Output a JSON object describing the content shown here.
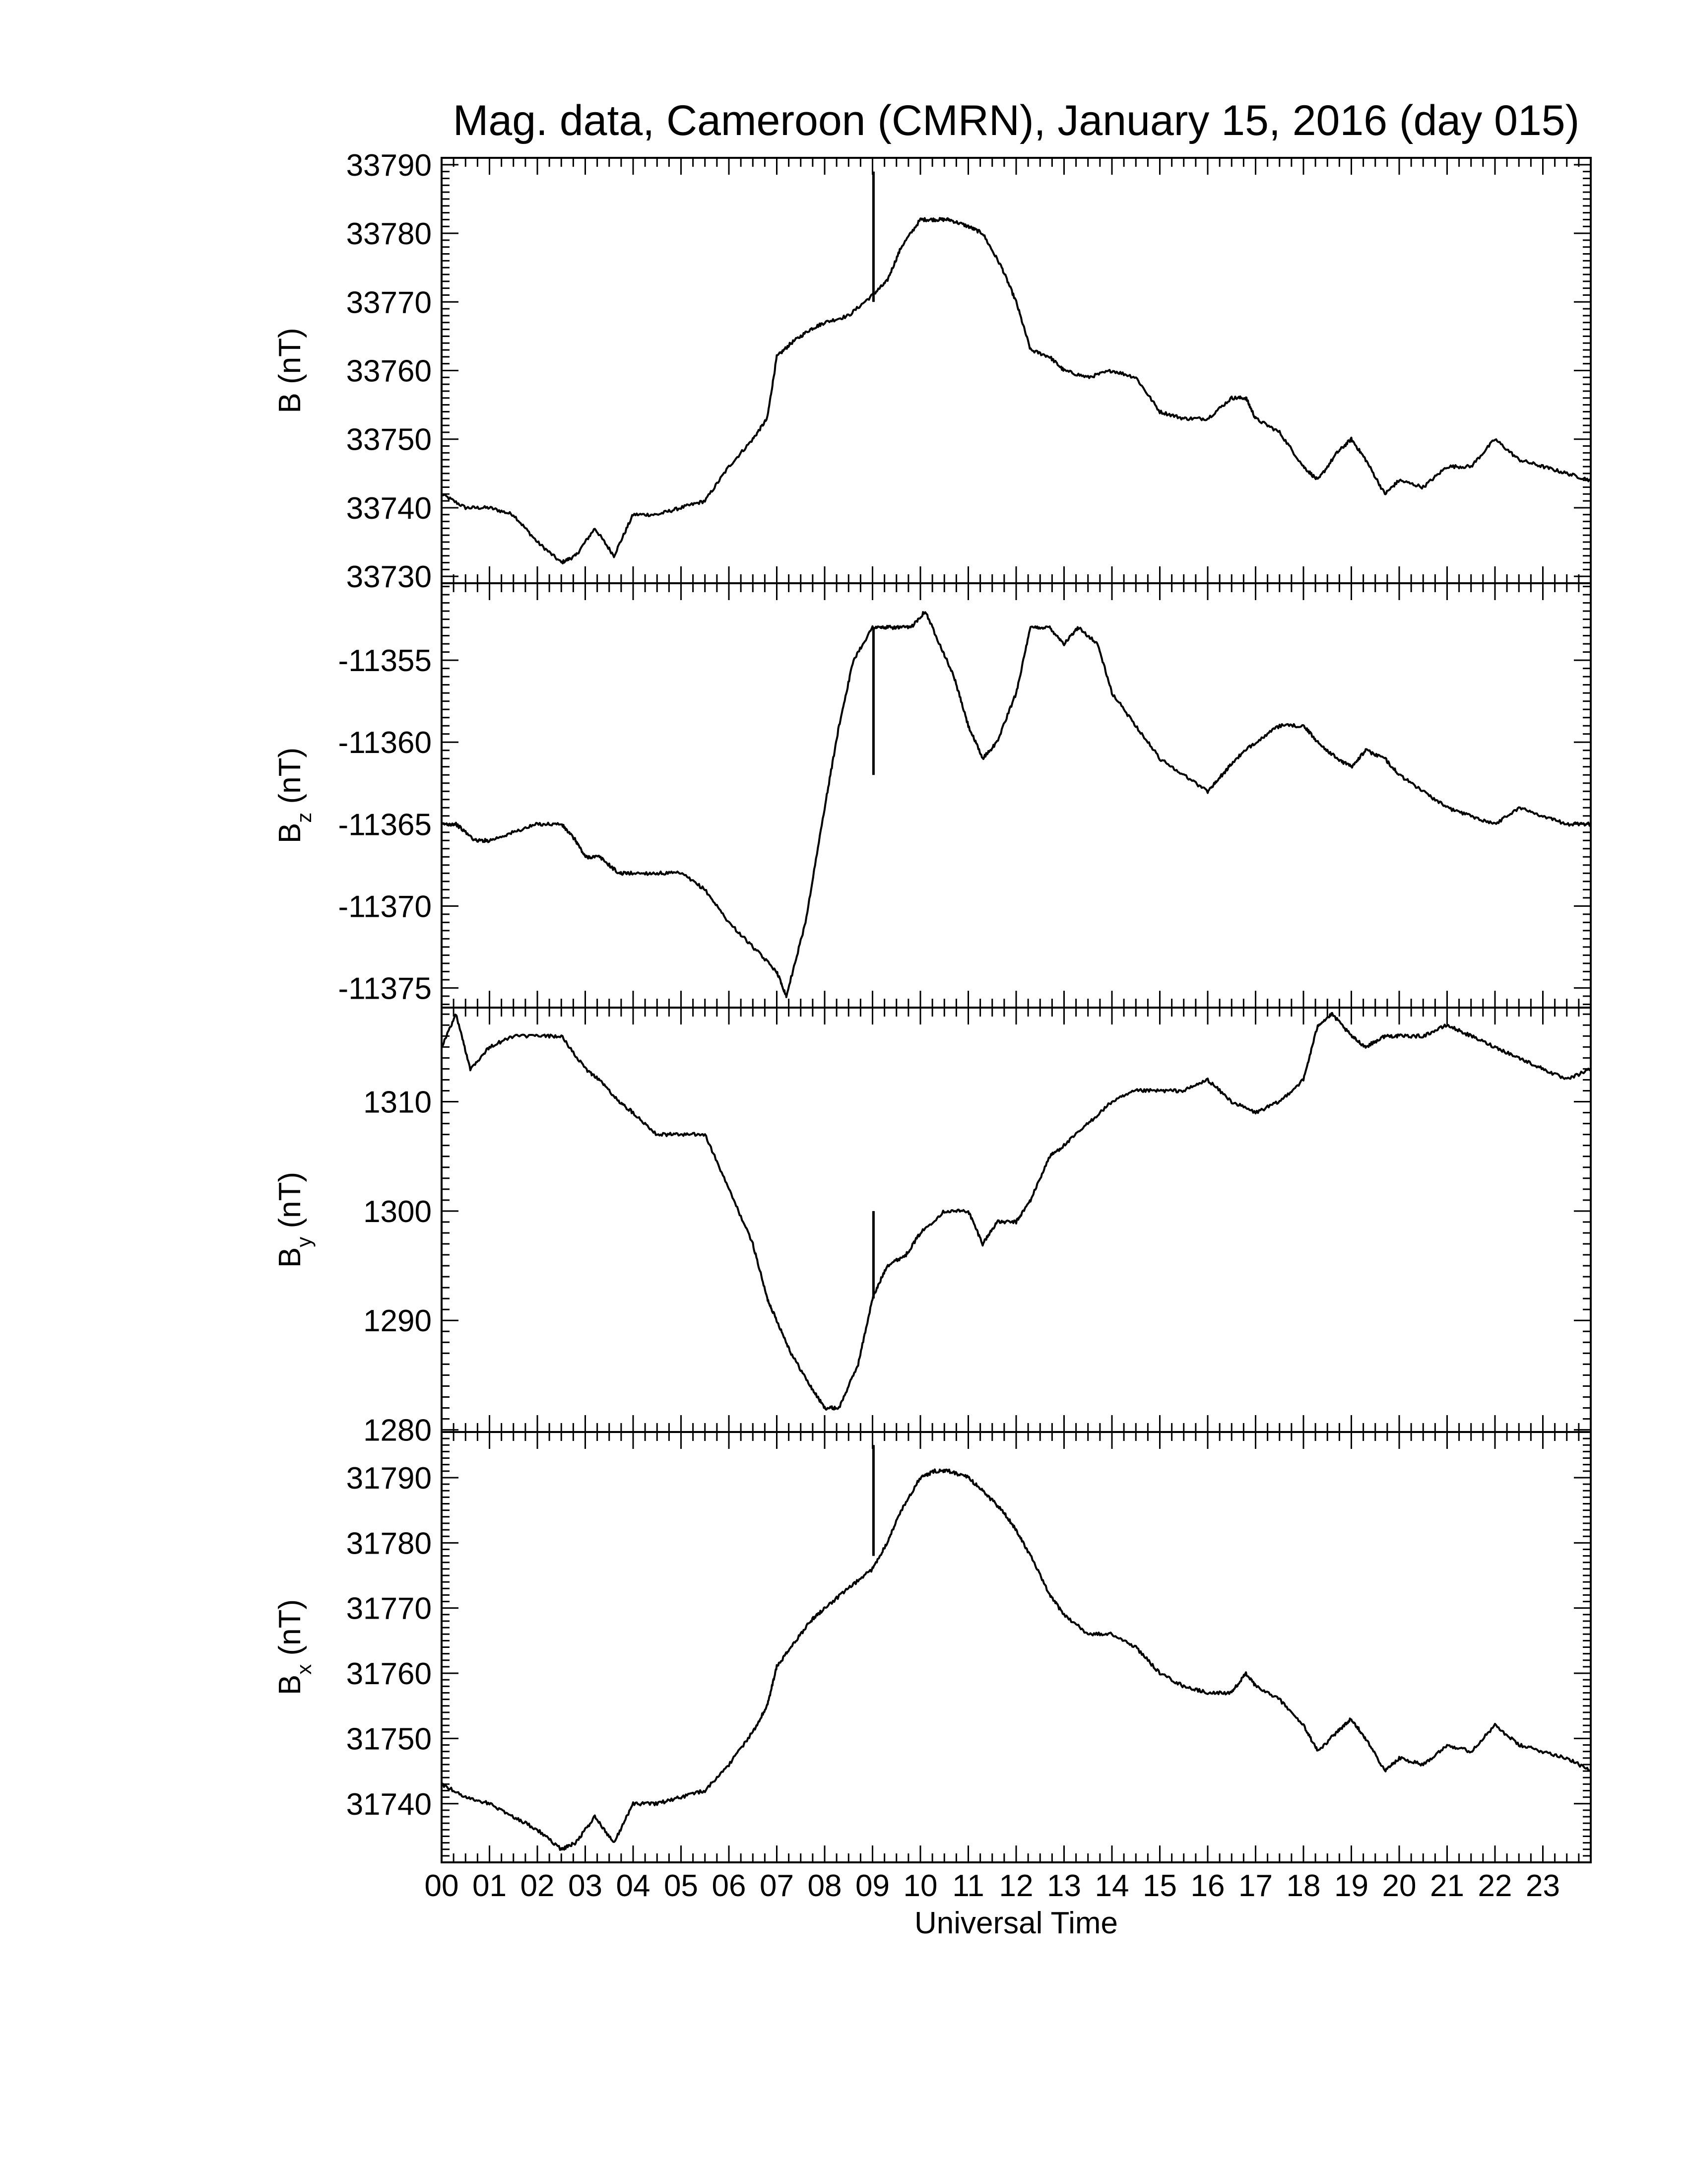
{
  "title": "Mag. data, Cameroon (CMRN), January 15, 2016 (day 015)",
  "xlabel": "Universal Time",
  "x_tick_labels": [
    "00",
    "01",
    "02",
    "03",
    "04",
    "05",
    "06",
    "07",
    "08",
    "09",
    "10",
    "11",
    "12",
    "13",
    "14",
    "15",
    "16",
    "17",
    "18",
    "19",
    "20",
    "21",
    "22",
    "23"
  ],
  "line_color": "#000000",
  "chart_data": [
    {
      "type": "line",
      "ylabel_main": "B",
      "ylabel_sub": "",
      "ylabel_unit": "(nT)",
      "ylim": [
        33729,
        33791
      ],
      "yticks": [
        33730,
        33740,
        33750,
        33760,
        33770,
        33780,
        33790
      ],
      "xlim": [
        0,
        24
      ],
      "x": [
        0,
        0.5,
        1.0,
        1.5,
        2.0,
        2.5,
        2.8,
        3.2,
        3.6,
        4.0,
        4.5,
        5.0,
        5.5,
        6.0,
        6.5,
        6.8,
        7.0,
        7.3,
        7.7,
        8.0,
        8.5,
        9.0,
        9.3,
        9.6,
        10.0,
        10.3,
        10.6,
        11.0,
        11.3,
        11.7,
        12.0,
        12.3,
        12.7,
        13.0,
        13.5,
        14.0,
        14.5,
        15.0,
        15.5,
        16.0,
        16.5,
        16.8,
        17.0,
        17.5,
        18.0,
        18.3,
        18.7,
        19.0,
        19.3,
        19.7,
        20.0,
        20.5,
        21.0,
        21.5,
        22.0,
        22.5,
        23.0,
        23.5,
        24.0
      ],
      "y": [
        33742,
        33740,
        33740,
        33739,
        33735,
        33732,
        33733,
        33737,
        33733,
        33739,
        33739,
        33740,
        33741,
        33746,
        33750,
        33753,
        33762,
        33764,
        33766,
        33767,
        33768,
        33771,
        33773,
        33778,
        33782,
        33782,
        33782,
        33781,
        33780,
        33775,
        33770,
        33763,
        33762,
        33760,
        33759,
        33760,
        33759,
        33754,
        33753,
        33753,
        33756,
        33756,
        33753,
        33751,
        33746,
        33744,
        33748,
        33750,
        33747,
        33742,
        33744,
        33743,
        33746,
        33746,
        33750,
        33747,
        33746,
        33745,
        33744
      ],
      "spike": {
        "x": 9.02,
        "ymin": 33770,
        "ymax": 33789
      }
    },
    {
      "type": "line",
      "ylabel_main": "B",
      "ylabel_sub": "z",
      "ylabel_unit": "(nT)",
      "ylim": [
        -11376.2,
        -11350.3
      ],
      "yticks": [
        -11355,
        -11360,
        -11365,
        -11370,
        -11375
      ],
      "xlim": [
        0,
        24
      ],
      "x": [
        0,
        0.3,
        0.7,
        1.0,
        1.5,
        2.0,
        2.5,
        2.8,
        3.0,
        3.3,
        3.7,
        4.0,
        4.5,
        5.0,
        5.5,
        6.0,
        6.5,
        7.0,
        7.2,
        7.6,
        8.0,
        8.3,
        8.6,
        9.0,
        9.2,
        9.5,
        9.8,
        10.1,
        10.4,
        10.7,
        11.0,
        11.3,
        11.6,
        12.0,
        12.3,
        12.7,
        13.0,
        13.3,
        13.7,
        14.0,
        14.5,
        15.0,
        15.5,
        16.0,
        16.3,
        16.6,
        17.0,
        17.5,
        18.0,
        18.3,
        18.7,
        19.0,
        19.3,
        19.7,
        20.0,
        20.5,
        21.0,
        21.5,
        22.0,
        22.5,
        23.0,
        23.5,
        24.0
      ],
      "y": [
        -11365,
        -11365,
        -11366,
        -11366,
        -11365.5,
        -11365,
        -11365,
        -11366,
        -11367,
        -11367,
        -11368,
        -11368,
        -11368,
        -11368,
        -11369,
        -11371,
        -11372.5,
        -11374,
        -11375.5,
        -11371,
        -11364,
        -11359,
        -11355,
        -11353,
        -11353,
        -11353,
        -11353,
        -11352,
        -11354,
        -11356,
        -11359,
        -11361,
        -11360,
        -11357,
        -11353,
        -11353,
        -11354,
        -11353,
        -11354,
        -11357,
        -11359,
        -11361,
        -11362,
        -11363,
        -11362,
        -11361,
        -11360,
        -11359,
        -11359,
        -11360,
        -11361,
        -11361.5,
        -11360.5,
        -11361,
        -11362,
        -11363,
        -11364,
        -11364.5,
        -11365,
        -11364,
        -11364.5,
        -11365,
        -11365
      ],
      "spike": {
        "x": 9.02,
        "ymin": -11362,
        "ymax": -11353
      }
    },
    {
      "type": "line",
      "ylabel_main": "B",
      "ylabel_sub": "y",
      "ylabel_unit": "(nT)",
      "ylim": [
        1279.8,
        1318.6
      ],
      "yticks": [
        1280,
        1290,
        1300,
        1310
      ],
      "xlim": [
        0,
        24
      ],
      "x": [
        0,
        0.3,
        0.6,
        1.0,
        1.5,
        2.0,
        2.5,
        3.0,
        3.3,
        3.7,
        4.0,
        4.5,
        5.0,
        5.5,
        6.0,
        6.5,
        6.8,
        7.0,
        7.3,
        7.7,
        8.0,
        8.3,
        8.7,
        9.0,
        9.3,
        9.7,
        10.0,
        10.5,
        11.0,
        11.3,
        11.6,
        12.0,
        12.3,
        12.7,
        13.0,
        13.5,
        14.0,
        14.5,
        15.0,
        15.5,
        16.0,
        16.5,
        17.0,
        17.5,
        18.0,
        18.3,
        18.6,
        19.0,
        19.3,
        19.7,
        20.0,
        20.5,
        21.0,
        21.5,
        22.0,
        22.5,
        23.0,
        23.5,
        24.0
      ],
      "y": [
        1315,
        1318,
        1313,
        1315,
        1316,
        1316,
        1316,
        1313,
        1312,
        1310,
        1309,
        1307,
        1307,
        1307,
        1302,
        1297,
        1292,
        1290,
        1287,
        1284,
        1282,
        1282,
        1286,
        1292,
        1295,
        1296,
        1298,
        1300,
        1300,
        1297,
        1299,
        1299,
        1301,
        1305,
        1306,
        1308,
        1310,
        1311,
        1311,
        1311,
        1312,
        1310,
        1309,
        1310,
        1312,
        1317,
        1318,
        1316,
        1315,
        1316,
        1316,
        1316,
        1317,
        1316,
        1315,
        1314,
        1313,
        1312,
        1313
      ],
      "spike": {
        "x": 9.02,
        "ymin": 1292,
        "ymax": 1300
      }
    },
    {
      "type": "line",
      "ylabel_main": "B",
      "ylabel_sub": "x",
      "ylabel_unit": "(nT)",
      "ylim": [
        31731,
        31797
      ],
      "yticks": [
        31740,
        31750,
        31760,
        31770,
        31780,
        31790
      ],
      "xlim": [
        0,
        24
      ],
      "x": [
        0,
        0.5,
        1.0,
        1.5,
        2.0,
        2.5,
        2.8,
        3.2,
        3.6,
        4.0,
        4.5,
        5.0,
        5.5,
        6.0,
        6.5,
        6.8,
        7.0,
        7.3,
        7.7,
        8.0,
        8.5,
        9.0,
        9.3,
        9.6,
        10.0,
        10.3,
        10.6,
        11.0,
        11.3,
        11.7,
        12.0,
        12.3,
        12.7,
        13.0,
        13.5,
        14.0,
        14.5,
        15.0,
        15.5,
        16.0,
        16.5,
        16.8,
        17.0,
        17.5,
        18.0,
        18.3,
        18.7,
        19.0,
        19.3,
        19.7,
        20.0,
        20.5,
        21.0,
        21.5,
        22.0,
        22.5,
        23.0,
        23.5,
        24.0
      ],
      "y": [
        31743,
        31741,
        31740,
        31738,
        31736,
        31733,
        31734,
        31738,
        31734,
        31740,
        31740,
        31741,
        31742,
        31746,
        31751,
        31755,
        31761,
        31764,
        31768,
        31770,
        31773,
        31776,
        31780,
        31785,
        31790,
        31791,
        31791,
        31790,
        31788,
        31785,
        31782,
        31778,
        31772,
        31769,
        31766,
        31766,
        31764,
        31760,
        31758,
        31757,
        31757,
        31760,
        31758,
        31756,
        31752,
        31748,
        31751,
        31753,
        31750,
        31745,
        31747,
        31746,
        31749,
        31748,
        31752,
        31749,
        31748,
        31747,
        31745
      ],
      "spike": {
        "x": 9.02,
        "ymin": 31778,
        "ymax": 31795
      }
    }
  ]
}
